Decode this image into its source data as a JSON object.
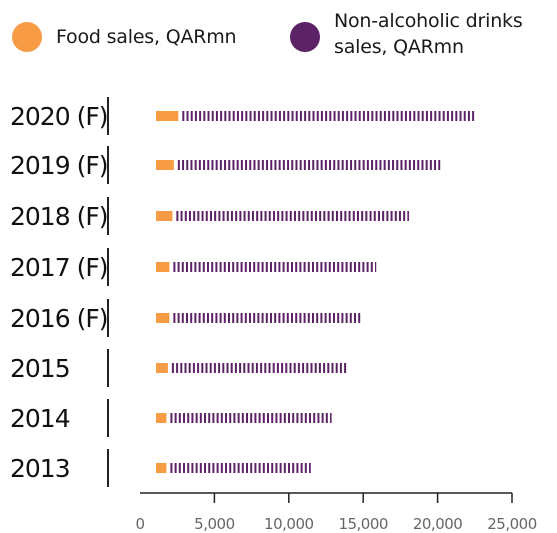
{
  "legend": {
    "food_label": "Food sales, QARmn",
    "drinks_label": "Non-alcoholic drinks sales, QARmn"
  },
  "colors": {
    "food": "#F79B45",
    "drinks": "#5C2266",
    "axis": "#222222"
  },
  "chart_data": {
    "type": "bar",
    "orientation": "horizontal",
    "categories": [
      "2020 (F)",
      "2019 (F)",
      "2018 (F)",
      "2017 (F)",
      "2016 (F)",
      "2015",
      "2014",
      "2013"
    ],
    "series": [
      {
        "name": "Food sales, QARmn",
        "values": [
          21400,
          19100,
          17000,
          14800,
          13800,
          12900,
          11800,
          10400
        ]
      },
      {
        "name": "Non-alcoholic drinks sales, QARmn",
        "values": [
          1500,
          1200,
          1100,
          900,
          900,
          800,
          700,
          700
        ]
      }
    ],
    "xlim": [
      0,
      25000
    ],
    "xticks": [
      "0",
      "5,000",
      "10,000",
      "15,000",
      "20,000",
      "25,000"
    ],
    "tick_values": [
      0,
      5000,
      10000,
      15000,
      20000,
      25000
    ],
    "grid": false,
    "legend_position": "top"
  }
}
